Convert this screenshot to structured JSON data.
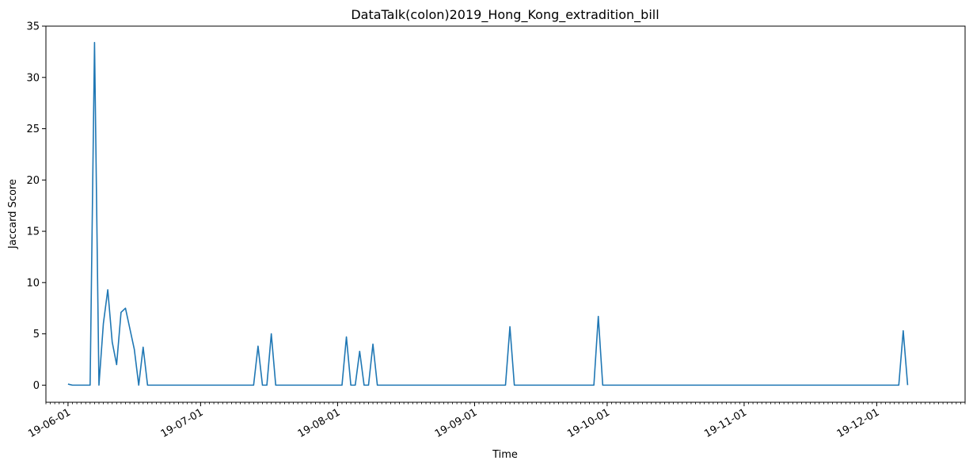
{
  "chart_data": {
    "type": "line",
    "title": "DataTalk(colon)2019_Hong_Kong_extradition_bill",
    "xlabel": "Time",
    "ylabel": "Jaccard Score",
    "x_axis_type": "date",
    "xlim": [
      "2019-05-27",
      "2019-12-21"
    ],
    "ylim": [
      -1.67,
      35
    ],
    "y_ticks": [
      0,
      5,
      10,
      15,
      20,
      25,
      30,
      35
    ],
    "x_ticks": [
      {
        "date": "2019-06-01",
        "label": "19-06-01"
      },
      {
        "date": "2019-07-01",
        "label": "19-07-01"
      },
      {
        "date": "2019-08-01",
        "label": "19-08-01"
      },
      {
        "date": "2019-09-01",
        "label": "19-09-01"
      },
      {
        "date": "2019-10-01",
        "label": "19-10-01"
      },
      {
        "date": "2019-11-01",
        "label": "19-11-01"
      },
      {
        "date": "2019-12-01",
        "label": "19-12-01"
      }
    ],
    "grid": false,
    "legend": "none",
    "series": [
      {
        "color": "#1f77b4",
        "points": [
          [
            "2019-06-01",
            0.1
          ],
          [
            "2019-06-02",
            0
          ],
          [
            "2019-06-06",
            0
          ],
          [
            "2019-06-07",
            33.4
          ],
          [
            "2019-06-08",
            0
          ],
          [
            "2019-06-09",
            6.0
          ],
          [
            "2019-06-10",
            9.3
          ],
          [
            "2019-06-11",
            4.2
          ],
          [
            "2019-06-12",
            2.0
          ],
          [
            "2019-06-13",
            7.1
          ],
          [
            "2019-06-14",
            7.5
          ],
          [
            "2019-06-15",
            5.5
          ],
          [
            "2019-06-16",
            3.5
          ],
          [
            "2019-06-17",
            0
          ],
          [
            "2019-06-18",
            3.7
          ],
          [
            "2019-06-19",
            0
          ],
          [
            "2019-07-13",
            0
          ],
          [
            "2019-07-14",
            3.8
          ],
          [
            "2019-07-15",
            0
          ],
          [
            "2019-07-16",
            0
          ],
          [
            "2019-07-17",
            5.0
          ],
          [
            "2019-07-18",
            0
          ],
          [
            "2019-08-02",
            0
          ],
          [
            "2019-08-03",
            4.7
          ],
          [
            "2019-08-04",
            0
          ],
          [
            "2019-08-05",
            0
          ],
          [
            "2019-08-06",
            3.3
          ],
          [
            "2019-08-07",
            0
          ],
          [
            "2019-08-08",
            0
          ],
          [
            "2019-08-09",
            4.0
          ],
          [
            "2019-08-10",
            0
          ],
          [
            "2019-09-08",
            0
          ],
          [
            "2019-09-09",
            5.7
          ],
          [
            "2019-09-10",
            0
          ],
          [
            "2019-09-28",
            0
          ],
          [
            "2019-09-29",
            6.7
          ],
          [
            "2019-09-30",
            0
          ],
          [
            "2019-12-06",
            0
          ],
          [
            "2019-12-07",
            5.3
          ],
          [
            "2019-12-08",
            0
          ]
        ]
      }
    ]
  }
}
